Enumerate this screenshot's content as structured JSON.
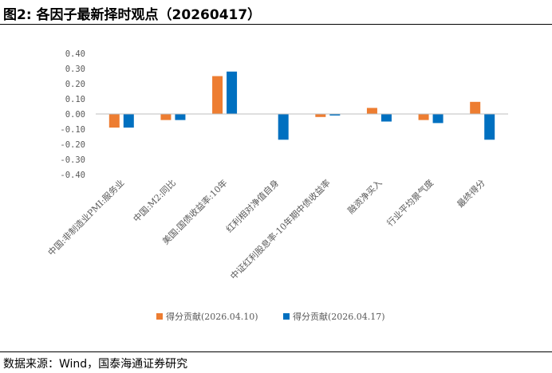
{
  "figure": {
    "title": "图2:  各因子最新择时观点（20260417）",
    "source": "数据来源：Wind，国泰海通证券研究"
  },
  "chart_data": {
    "type": "bar",
    "categories": [
      "中国:非制造业PMI:服务业",
      "中国:M2:同比",
      "美国:国债收益率:10年",
      "红利相对净值自身",
      "中证红利股息率-10年期中债收益率",
      "融资净买入",
      "行业平均景气度",
      "最终得分"
    ],
    "series": [
      {
        "name": "得分贡献(2026.04.10)",
        "color": "#ED7D31",
        "values": [
          -0.09,
          -0.04,
          0.25,
          0.0,
          -0.02,
          0.04,
          -0.04,
          0.08
        ]
      },
      {
        "name": "得分贡献(2026.04.17)",
        "color": "#0070C0",
        "values": [
          -0.09,
          -0.04,
          0.28,
          -0.17,
          -0.01,
          -0.05,
          -0.06,
          -0.17
        ]
      }
    ],
    "ylim": [
      -0.4,
      0.4
    ],
    "yticks": [
      "0.40",
      "0.30",
      "0.20",
      "0.10",
      "0.00",
      "-0.10",
      "-0.20",
      "-0.30",
      "-0.40"
    ],
    "legend_position": "bottom",
    "grid": false
  }
}
